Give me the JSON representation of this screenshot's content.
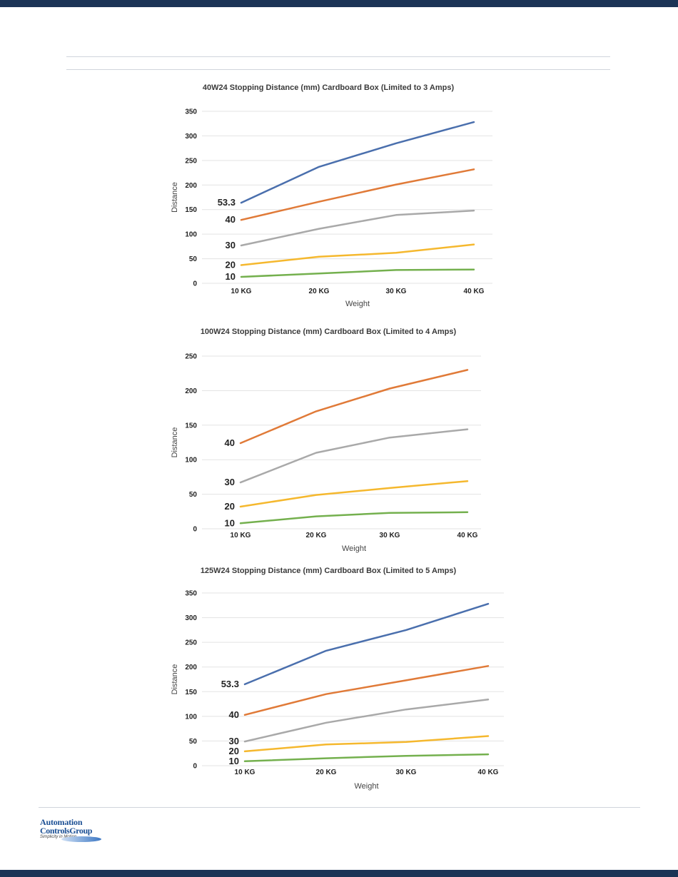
{
  "footer": {
    "logo_line1": "Automation",
    "logo_line2": "ControlsGroup",
    "logo_tagline": "Simplicity in Motion"
  },
  "colors": {
    "band": "#1b3456",
    "s53": "#4a6fad",
    "s40": "#e07a38",
    "s30": "#a9a9a9",
    "s20": "#f5b82e",
    "s10": "#74b04e",
    "grid": "#e3e3e3"
  },
  "chart_data": [
    {
      "type": "line",
      "title": "40W24 Stopping Distance (mm) Cardboard Box (Limited to 3 Amps)",
      "xlabel": "Weight",
      "ylabel": "Distance",
      "categories": [
        "10 KG",
        "20 KG",
        "30 KG",
        "40 KG"
      ],
      "ylim": [
        0,
        350
      ],
      "yticks": [
        0,
        50,
        100,
        150,
        200,
        250,
        300,
        350
      ],
      "grid": true,
      "series": [
        {
          "name": "53.3",
          "color": "#4a6fad",
          "values": [
            164,
            237,
            285,
            328
          ]
        },
        {
          "name": "40",
          "color": "#e07a38",
          "values": [
            129,
            166,
            201,
            232
          ]
        },
        {
          "name": "30",
          "color": "#a9a9a9",
          "values": [
            77,
            111,
            139,
            148
          ]
        },
        {
          "name": "20",
          "color": "#f5b82e",
          "values": [
            37,
            54,
            62,
            79
          ]
        },
        {
          "name": "10",
          "color": "#74b04e",
          "values": [
            13,
            20,
            27,
            28
          ]
        }
      ]
    },
    {
      "type": "line",
      "title": "100W24 Stopping Distance (mm) Cardboard Box (Limited to 4 Amps)",
      "xlabel": "Weight",
      "ylabel": "Distance",
      "categories": [
        "10 KG",
        "20 KG",
        "30 KG",
        "40 KG"
      ],
      "ylim": [
        0,
        250
      ],
      "yticks": [
        0,
        50,
        100,
        150,
        200,
        250
      ],
      "grid": true,
      "series": [
        {
          "name": "40",
          "color": "#e07a38",
          "values": [
            124,
            170,
            203,
            230
          ]
        },
        {
          "name": "30",
          "color": "#a9a9a9",
          "values": [
            67,
            110,
            132,
            144
          ]
        },
        {
          "name": "20",
          "color": "#f5b82e",
          "values": [
            32,
            49,
            59,
            69
          ]
        },
        {
          "name": "10",
          "color": "#74b04e",
          "values": [
            8,
            18,
            23,
            24
          ]
        }
      ]
    },
    {
      "type": "line",
      "title": "125W24 Stopping Distance (mm) Cardboard Box (Limited to 5 Amps)",
      "xlabel": "Weight",
      "ylabel": "Distance",
      "categories": [
        "10 KG",
        "20 KG",
        "30 KG",
        "40 KG"
      ],
      "ylim": [
        0,
        350
      ],
      "yticks": [
        0,
        50,
        100,
        150,
        200,
        250,
        300,
        350
      ],
      "grid": true,
      "series": [
        {
          "name": "53.3",
          "color": "#4a6fad",
          "values": [
            165,
            233,
            275,
            328
          ]
        },
        {
          "name": "40",
          "color": "#e07a38",
          "values": [
            103,
            145,
            173,
            202
          ]
        },
        {
          "name": "30",
          "color": "#a9a9a9",
          "values": [
            49,
            87,
            114,
            134
          ]
        },
        {
          "name": "20",
          "color": "#f5b82e",
          "values": [
            29,
            43,
            48,
            60
          ]
        },
        {
          "name": "10",
          "color": "#74b04e",
          "values": [
            9,
            15,
            20,
            23
          ]
        }
      ]
    }
  ]
}
